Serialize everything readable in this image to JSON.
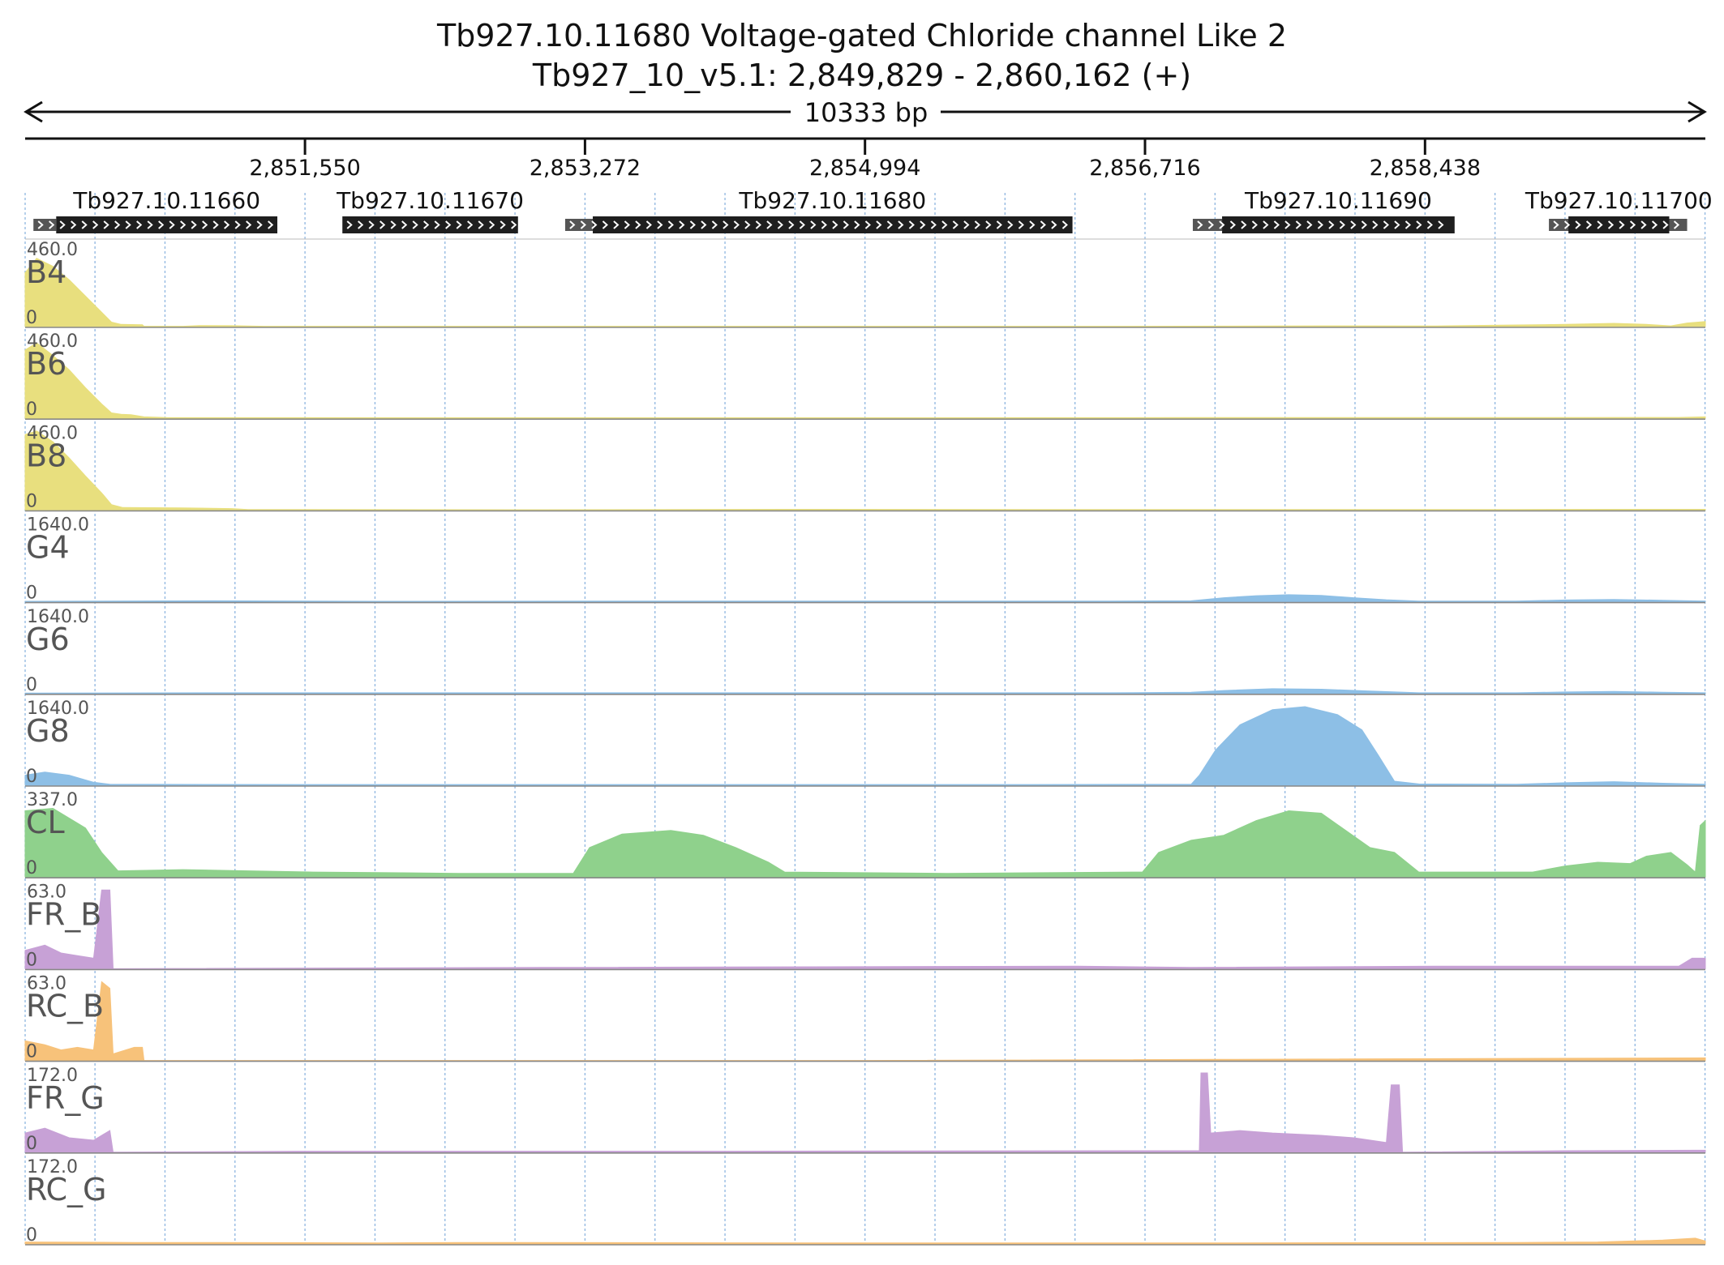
{
  "title": "Tb927.10.11680  Voltage-gated Chloride channel Like 2",
  "subtitle": "Tb927_10_v5.1: 2,849,829 - 2,860,162 (+)",
  "length_label": "10333 bp",
  "colors": {
    "yellow": "#e8df7e",
    "blue": "#8dbfe6",
    "green": "#8fd18c",
    "purple": "#c7a1d6",
    "orange": "#f7c27a",
    "gene": "#1f1f1f",
    "utr": "#555555",
    "grid": "#8fb6e0"
  },
  "chart_data": {
    "type": "area",
    "title": "Tb927.10.11680  Voltage-gated Chloride channel Like 2",
    "subtitle": "Tb927_10_v5.1: 2,849,829 - 2,860,162 (+)",
    "region": {
      "chrom": "Tb927_10_v5.1",
      "start": 2849829,
      "end": 2860162,
      "strand": "+",
      "length_bp": 10333
    },
    "xlim": [
      2849829,
      2860162
    ],
    "x_ticks": [
      {
        "pos": 2851550,
        "label": "2,851,550"
      },
      {
        "pos": 2853272,
        "label": "2,853,272"
      },
      {
        "pos": 2854994,
        "label": "2,854,994"
      },
      {
        "pos": 2856716,
        "label": "2,856,716"
      },
      {
        "pos": 2858438,
        "label": "2,858,438"
      }
    ],
    "genes": [
      {
        "name": "Tb927.10.11660",
        "utr": [
          2849880,
          2850020
        ],
        "cds": [
          2850020,
          2851380
        ]
      },
      {
        "name": "Tb927.10.11670",
        "utr": null,
        "cds": [
          2851780,
          2852860
        ]
      },
      {
        "name": "Tb927.10.11680",
        "utr": [
          2853150,
          2853320
        ],
        "cds": [
          2853320,
          2856270
        ]
      },
      {
        "name": "Tb927.10.11690",
        "utr": [
          2857010,
          2857190
        ],
        "cds": [
          2857190,
          2858620
        ]
      },
      {
        "name": "Tb927.10.11700",
        "utr": [
          2859200,
          2860050
        ],
        "cds": [
          2859320,
          2859940
        ]
      }
    ],
    "tracks": [
      {
        "name": "B4",
        "ymax_label": "460.0",
        "ymin_label": "0",
        "ylim": [
          0,
          460
        ],
        "color": "yellow",
        "points": [
          [
            2849829,
            300
          ],
          [
            2849900,
            380
          ],
          [
            2850000,
            335
          ],
          [
            2850100,
            260
          ],
          [
            2850200,
            170
          ],
          [
            2850300,
            80
          ],
          [
            2850360,
            25
          ],
          [
            2850420,
            12
          ],
          [
            2850550,
            10
          ],
          [
            2850560,
            2
          ],
          [
            2850800,
            2
          ],
          [
            2850900,
            6
          ],
          [
            2851100,
            5
          ],
          [
            2851300,
            2
          ],
          [
            2852000,
            2
          ],
          [
            2856600,
            2
          ],
          [
            2857800,
            4
          ],
          [
            2858500,
            3
          ],
          [
            2858900,
            8
          ],
          [
            2859300,
            12
          ],
          [
            2859600,
            18
          ],
          [
            2859800,
            12
          ],
          [
            2859950,
            4
          ],
          [
            2860050,
            20
          ],
          [
            2860162,
            28
          ]
        ]
      },
      {
        "name": "B6",
        "ymax_label": "460.0",
        "ymin_label": "0",
        "ylim": [
          0,
          460
        ],
        "color": "yellow",
        "points": [
          [
            2849829,
            380
          ],
          [
            2849900,
            420
          ],
          [
            2850000,
            350
          ],
          [
            2850100,
            270
          ],
          [
            2850200,
            170
          ],
          [
            2850300,
            80
          ],
          [
            2850360,
            30
          ],
          [
            2850420,
            22
          ],
          [
            2850480,
            20
          ],
          [
            2850560,
            8
          ],
          [
            2850700,
            4
          ],
          [
            2852500,
            3
          ],
          [
            2855000,
            3
          ],
          [
            2857000,
            4
          ],
          [
            2859000,
            4
          ],
          [
            2860000,
            5
          ],
          [
            2860162,
            8
          ]
        ]
      },
      {
        "name": "B8",
        "ymax_label": "460.0",
        "ymin_label": "0",
        "ylim": [
          0,
          460
        ],
        "color": "yellow",
        "points": [
          [
            2849829,
            420
          ],
          [
            2849900,
            440
          ],
          [
            2850000,
            380
          ],
          [
            2850100,
            290
          ],
          [
            2850200,
            190
          ],
          [
            2850300,
            95
          ],
          [
            2850360,
            30
          ],
          [
            2850430,
            14
          ],
          [
            2850800,
            12
          ],
          [
            2851100,
            8
          ],
          [
            2851200,
            3
          ],
          [
            2853000,
            2
          ],
          [
            2854500,
            4
          ],
          [
            2856000,
            3
          ],
          [
            2857500,
            3
          ],
          [
            2859000,
            3
          ],
          [
            2860162,
            4
          ]
        ]
      },
      {
        "name": "G4",
        "ymax_label": "1640.0",
        "ymin_label": "0",
        "ylim": [
          0,
          1640
        ],
        "color": "blue",
        "points": [
          [
            2849829,
            10
          ],
          [
            2851000,
            20
          ],
          [
            2852000,
            10
          ],
          [
            2853500,
            15
          ],
          [
            2855500,
            15
          ],
          [
            2856500,
            15
          ],
          [
            2857000,
            20
          ],
          [
            2857200,
            80
          ],
          [
            2857400,
            120
          ],
          [
            2857600,
            140
          ],
          [
            2857800,
            125
          ],
          [
            2858000,
            80
          ],
          [
            2858200,
            40
          ],
          [
            2858400,
            15
          ],
          [
            2859000,
            15
          ],
          [
            2859300,
            35
          ],
          [
            2859600,
            45
          ],
          [
            2859900,
            30
          ],
          [
            2860162,
            15
          ]
        ]
      },
      {
        "name": "G6",
        "ymax_label": "1640.0",
        "ymin_label": "0",
        "ylim": [
          0,
          1640
        ],
        "color": "blue",
        "points": [
          [
            2849829,
            10
          ],
          [
            2851000,
            15
          ],
          [
            2853500,
            15
          ],
          [
            2856500,
            15
          ],
          [
            2857000,
            25
          ],
          [
            2857200,
            60
          ],
          [
            2857500,
            95
          ],
          [
            2857800,
            85
          ],
          [
            2858100,
            50
          ],
          [
            2858400,
            15
          ],
          [
            2859000,
            15
          ],
          [
            2859300,
            30
          ],
          [
            2859600,
            40
          ],
          [
            2859900,
            25
          ],
          [
            2860162,
            15
          ]
        ]
      },
      {
        "name": "G8",
        "ymax_label": "1640.0",
        "ymin_label": "0",
        "ylim": [
          0,
          1640
        ],
        "color": "blue",
        "points": [
          [
            2849829,
            200
          ],
          [
            2849950,
            260
          ],
          [
            2850100,
            200
          ],
          [
            2850250,
            60
          ],
          [
            2850350,
            20
          ],
          [
            2851500,
            15
          ],
          [
            2853000,
            15
          ],
          [
            2856000,
            15
          ],
          [
            2857000,
            20
          ],
          [
            2857050,
            200
          ],
          [
            2857150,
            700
          ],
          [
            2857300,
            1200
          ],
          [
            2857500,
            1500
          ],
          [
            2857700,
            1560
          ],
          [
            2857900,
            1400
          ],
          [
            2858050,
            1100
          ],
          [
            2858150,
            600
          ],
          [
            2858250,
            80
          ],
          [
            2858400,
            25
          ],
          [
            2859000,
            20
          ],
          [
            2859300,
            50
          ],
          [
            2859600,
            70
          ],
          [
            2859900,
            40
          ],
          [
            2860162,
            20
          ]
        ]
      },
      {
        "name": "CL",
        "ymax_label": "337.0",
        "ymin_label": "0",
        "ylim": [
          0,
          337
        ],
        "color": "green",
        "points": [
          [
            2849829,
            270
          ],
          [
            2850000,
            280
          ],
          [
            2850200,
            200
          ],
          [
            2850300,
            100
          ],
          [
            2850400,
            25
          ],
          [
            2850800,
            30
          ],
          [
            2851200,
            25
          ],
          [
            2851600,
            20
          ],
          [
            2852000,
            18
          ],
          [
            2852500,
            15
          ],
          [
            2853200,
            15
          ],
          [
            2853300,
            120
          ],
          [
            2853500,
            175
          ],
          [
            2853800,
            190
          ],
          [
            2854000,
            170
          ],
          [
            2854200,
            120
          ],
          [
            2854400,
            60
          ],
          [
            2854500,
            20
          ],
          [
            2855500,
            15
          ],
          [
            2856700,
            20
          ],
          [
            2856800,
            100
          ],
          [
            2857000,
            150
          ],
          [
            2857200,
            170
          ],
          [
            2857400,
            230
          ],
          [
            2857600,
            270
          ],
          [
            2857800,
            260
          ],
          [
            2857950,
            190
          ],
          [
            2858100,
            120
          ],
          [
            2858250,
            100
          ],
          [
            2858400,
            20
          ],
          [
            2859100,
            20
          ],
          [
            2859300,
            45
          ],
          [
            2859500,
            60
          ],
          [
            2859700,
            55
          ],
          [
            2859800,
            85
          ],
          [
            2859950,
            100
          ],
          [
            2860050,
            50
          ],
          [
            2860100,
            20
          ],
          [
            2860130,
            210
          ],
          [
            2860162,
            230
          ]
        ]
      },
      {
        "name": "FR_B",
        "ymax_label": "63.0",
        "ymin_label": "0",
        "ylim": [
          0,
          63
        ],
        "color": "purple",
        "points": [
          [
            2849829,
            14
          ],
          [
            2849950,
            18
          ],
          [
            2850050,
            12
          ],
          [
            2850150,
            10
          ],
          [
            2850250,
            8
          ],
          [
            2850300,
            60
          ],
          [
            2850350,
            60
          ],
          [
            2850370,
            0
          ],
          [
            2853000,
            1
          ],
          [
            2856300,
            2
          ],
          [
            2857000,
            1
          ],
          [
            2858500,
            2
          ],
          [
            2860000,
            2
          ],
          [
            2860080,
            8
          ],
          [
            2860162,
            8
          ]
        ]
      },
      {
        "name": "RC_B",
        "ymax_label": "63.0",
        "ymin_label": "0",
        "ylim": [
          0,
          63
        ],
        "color": "orange",
        "points": [
          [
            2849829,
            15
          ],
          [
            2849950,
            12
          ],
          [
            2850050,
            8
          ],
          [
            2850150,
            10
          ],
          [
            2850250,
            8
          ],
          [
            2850300,
            60
          ],
          [
            2850350,
            55
          ],
          [
            2850370,
            5
          ],
          [
            2850500,
            10
          ],
          [
            2850550,
            10
          ],
          [
            2850560,
            0
          ],
          [
            2855000,
            0
          ],
          [
            2860162,
            2
          ]
        ]
      },
      {
        "name": "FR_G",
        "ymax_label": "172.0",
        "ymin_label": "0",
        "ylim": [
          0,
          172
        ],
        "color": "purple",
        "points": [
          [
            2849829,
            40
          ],
          [
            2849950,
            50
          ],
          [
            2850100,
            30
          ],
          [
            2850250,
            25
          ],
          [
            2850300,
            35
          ],
          [
            2850350,
            45
          ],
          [
            2850370,
            0
          ],
          [
            2851500,
            2
          ],
          [
            2854000,
            2
          ],
          [
            2856700,
            3
          ],
          [
            2857050,
            3
          ],
          [
            2857060,
            165
          ],
          [
            2857100,
            165
          ],
          [
            2857120,
            40
          ],
          [
            2857300,
            45
          ],
          [
            2857500,
            40
          ],
          [
            2857800,
            35
          ],
          [
            2858000,
            30
          ],
          [
            2858200,
            20
          ],
          [
            2858230,
            140
          ],
          [
            2858280,
            140
          ],
          [
            2858300,
            0
          ],
          [
            2859300,
            3
          ],
          [
            2860100,
            4
          ],
          [
            2860162,
            4
          ]
        ]
      },
      {
        "name": "RC_G",
        "ymax_label": "172.0",
        "ymin_label": "0",
        "ylim": [
          0,
          172
        ],
        "color": "orange",
        "points": [
          [
            2849829,
            4
          ],
          [
            2850500,
            3
          ],
          [
            2851000,
            3
          ],
          [
            2852000,
            2
          ],
          [
            2852500,
            3
          ],
          [
            2855000,
            2
          ],
          [
            2857000,
            2
          ],
          [
            2859000,
            3
          ],
          [
            2859500,
            4
          ],
          [
            2859900,
            8
          ],
          [
            2860100,
            12
          ],
          [
            2860162,
            6
          ]
        ]
      }
    ]
  }
}
